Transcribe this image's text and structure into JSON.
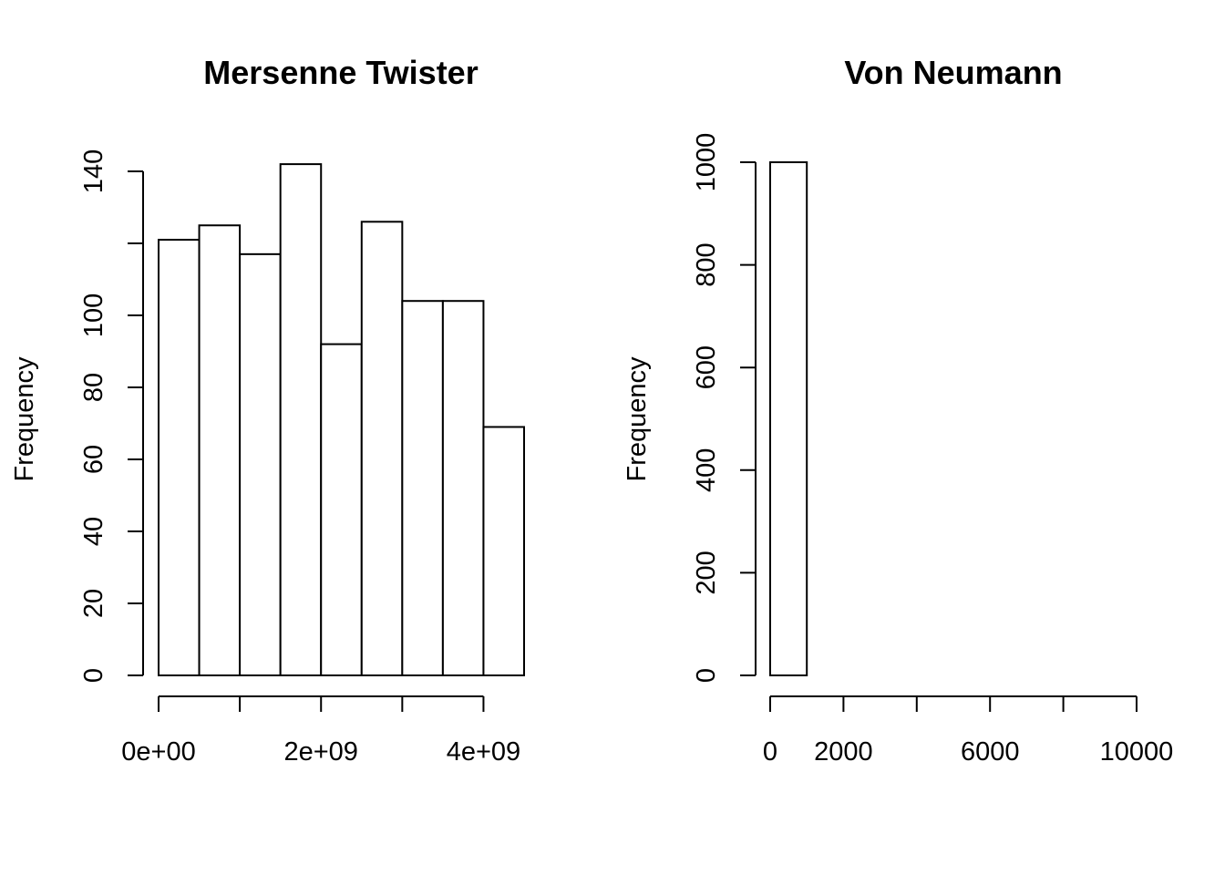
{
  "chart_data": [
    {
      "type": "bar",
      "title": "Mersenne Twister",
      "xlabel": "",
      "ylabel": "Frequency",
      "bin_edges": [
        0,
        500000000,
        1000000000,
        1500000000,
        2000000000,
        2500000000,
        3000000000,
        3500000000,
        4000000000,
        4500000000
      ],
      "values": [
        121,
        125,
        117,
        142,
        92,
        126,
        104,
        104,
        69
      ],
      "xlim": [
        0,
        4500000000
      ],
      "ylim": [
        0,
        140
      ],
      "x_ticks": [
        0,
        1000000000,
        2000000000,
        3000000000,
        4000000000
      ],
      "x_tick_labels": [
        "0e+00",
        "",
        "2e+09",
        "",
        "4e+09"
      ],
      "y_ticks": [
        0,
        20,
        40,
        60,
        80,
        100,
        120,
        140
      ],
      "y_tick_labels": [
        "0",
        "20",
        "40",
        "60",
        "80",
        "100",
        "",
        "140"
      ],
      "grid": false
    },
    {
      "type": "bar",
      "title": "Von Neumann",
      "xlabel": "",
      "ylabel": "Frequency",
      "bin_edges": [
        0,
        1000,
        2000,
        3000,
        4000,
        5000,
        6000,
        7000,
        8000,
        9000,
        10000
      ],
      "values": [
        1000,
        0,
        0,
        0,
        0,
        0,
        0,
        0,
        0,
        0
      ],
      "xlim": [
        0,
        10000
      ],
      "ylim": [
        0,
        1000
      ],
      "x_ticks": [
        0,
        2000,
        4000,
        6000,
        8000,
        10000
      ],
      "x_tick_labels": [
        "0",
        "2000",
        "",
        "6000",
        "",
        "10000"
      ],
      "y_ticks": [
        0,
        200,
        400,
        600,
        800,
        1000
      ],
      "y_tick_labels": [
        "0",
        "200",
        "400",
        "600",
        "800",
        "1000"
      ],
      "grid": false
    }
  ]
}
